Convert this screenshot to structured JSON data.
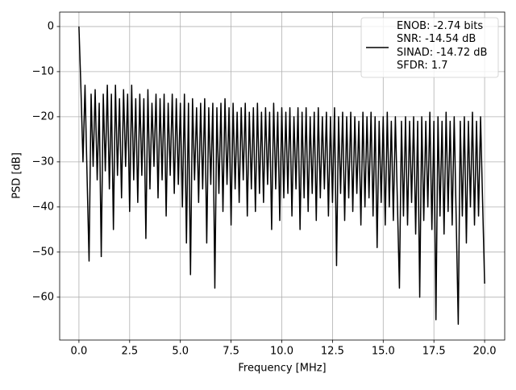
{
  "chart_data": {
    "type": "line",
    "xlabel": "Frequency [MHz]",
    "ylabel": "PSD [dB]",
    "xlim": [
      -0.95,
      20.99
    ],
    "ylim": [
      -69.5,
      3.2
    ],
    "xticks": [
      {
        "value": 0,
        "label": "0.0"
      },
      2.5,
      {
        "value": 5,
        "label": "5.0"
      },
      7.5,
      {
        "value": 10,
        "label": "10.0"
      },
      12.5,
      {
        "value": 15,
        "label": "15.0"
      },
      17.5,
      {
        "value": 20,
        "label": "20.0"
      }
    ],
    "yticks": [
      0,
      {
        "value": -10,
        "label": "−10"
      },
      {
        "value": -20,
        "label": "−20"
      },
      {
        "value": -30,
        "label": "−30"
      },
      {
        "value": -40,
        "label": "−40"
      },
      {
        "value": -50,
        "label": "−50"
      },
      {
        "value": -60,
        "label": "−60"
      }
    ],
    "grid": true,
    "legend": "upper right",
    "x": [
      0,
      0.1,
      0.2,
      0.3,
      0.4,
      0.5,
      0.6,
      0.7,
      0.8,
      0.9,
      1,
      1.1,
      1.2,
      1.3,
      1.4,
      1.5,
      1.6,
      1.7,
      1.8,
      1.9,
      2,
      2.1,
      2.2,
      2.3,
      2.4,
      2.5,
      2.6,
      2.7,
      2.8,
      2.9,
      3,
      3.1,
      3.2,
      3.3,
      3.4,
      3.5,
      3.6,
      3.7,
      3.8,
      3.9,
      4,
      4.1,
      4.2,
      4.3,
      4.4,
      4.5,
      4.6,
      4.7,
      4.8,
      4.9,
      5,
      5.1,
      5.2,
      5.3,
      5.4,
      5.5,
      5.6,
      5.7,
      5.8,
      5.9,
      6,
      6.1,
      6.2,
      6.3,
      6.4,
      6.5,
      6.6,
      6.7,
      6.8,
      6.9,
      7,
      7.1,
      7.2,
      7.3,
      7.4,
      7.5,
      7.6,
      7.7,
      7.8,
      7.9,
      8,
      8.1,
      8.2,
      8.3,
      8.4,
      8.5,
      8.6,
      8.7,
      8.8,
      8.9,
      9,
      9.1,
      9.2,
      9.3,
      9.4,
      9.5,
      9.6,
      9.7,
      9.8,
      9.9,
      10,
      10.1,
      10.2,
      10.3,
      10.4,
      10.5,
      10.6,
      10.7,
      10.8,
      10.9,
      11,
      11.1,
      11.2,
      11.3,
      11.4,
      11.5,
      11.6,
      11.7,
      11.8,
      11.9,
      12,
      12.1,
      12.2,
      12.3,
      12.4,
      12.5,
      12.6,
      12.7,
      12.8,
      12.9,
      13,
      13.1,
      13.2,
      13.3,
      13.4,
      13.5,
      13.6,
      13.7,
      13.8,
      13.9,
      14,
      14.1,
      14.2,
      14.3,
      14.4,
      14.5,
      14.6,
      14.7,
      14.8,
      14.9,
      15,
      15.1,
      15.2,
      15.3,
      15.4,
      15.5,
      15.6,
      15.7,
      15.8,
      15.9,
      16,
      16.1,
      16.2,
      16.3,
      16.4,
      16.5,
      16.6,
      16.7,
      16.8,
      16.9,
      17,
      17.1,
      17.2,
      17.3,
      17.4,
      17.5,
      17.6,
      17.7,
      17.8,
      17.9,
      18,
      18.1,
      18.2,
      18.3,
      18.4,
      18.5,
      18.6,
      18.7,
      18.8,
      18.9,
      19,
      19.1,
      19.2,
      19.3,
      19.4,
      19.5,
      19.6,
      19.7,
      19.8,
      19.9,
      20
    ],
    "series": [
      {
        "name": "ENOB: -2.74 bits\nSNR: -14.54 dB\nSINAD: -14.72 dB\nSFDR: 1.7",
        "color": "#000000",
        "values": [
          0,
          -14,
          -30,
          -13,
          -33,
          -52,
          -15,
          -31,
          -14,
          -34,
          -17,
          -51,
          -15,
          -32,
          -13,
          -36,
          -15,
          -45,
          -13,
          -33,
          -16,
          -38,
          -14,
          -31,
          -15,
          -41,
          -13,
          -34,
          -16,
          -39,
          -15,
          -33,
          -16,
          -47,
          -14,
          -36,
          -17,
          -31,
          -15,
          -38,
          -16,
          -34,
          -15,
          -42,
          -17,
          -33,
          -15,
          -37,
          -16,
          -35,
          -17,
          -40,
          -15,
          -48,
          -17,
          -55,
          -16,
          -34,
          -18,
          -39,
          -17,
          -36,
          -16,
          -48,
          -18,
          -35,
          -17,
          -58,
          -18,
          -37,
          -17,
          -41,
          -16,
          -35,
          -18,
          -44,
          -17,
          -36,
          -19,
          -39,
          -18,
          -34,
          -17,
          -42,
          -19,
          -36,
          -18,
          -41,
          -17,
          -37,
          -19,
          -39,
          -18,
          -35,
          -19,
          -45,
          -17,
          -36,
          -19,
          -43,
          -18,
          -38,
          -19,
          -37,
          -18,
          -42,
          -20,
          -36,
          -18,
          -45,
          -19,
          -38,
          -18,
          -41,
          -20,
          -37,
          -19,
          -43,
          -18,
          -38,
          -20,
          -36,
          -19,
          -42,
          -20,
          -39,
          -18,
          -53,
          -20,
          -37,
          -19,
          -43,
          -20,
          -38,
          -19,
          -41,
          -20,
          -37,
          -21,
          -44,
          -19,
          -40,
          -20,
          -38,
          -19,
          -42,
          -20,
          -49,
          -21,
          -39,
          -20,
          -44,
          -19,
          -40,
          -21,
          -43,
          -20,
          -39,
          -58,
          -21,
          -42,
          -20,
          -44,
          -21,
          -39,
          -20,
          -46,
          -21,
          -60,
          -20,
          -43,
          -21,
          -40,
          -19,
          -45,
          -21,
          -65,
          -20,
          -42,
          -21,
          -46,
          -19,
          -41,
          -21,
          -44,
          -20,
          -43,
          -66,
          -21,
          -42,
          -20,
          -48,
          -21,
          -40,
          -19,
          -44,
          -21,
          -42,
          -20,
          -39,
          -57
        ]
      }
    ]
  }
}
